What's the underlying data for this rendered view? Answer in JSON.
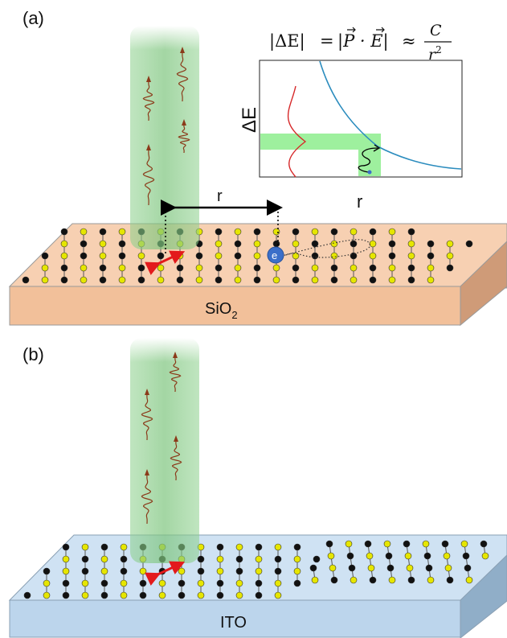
{
  "panel_a": {
    "label": "(a)",
    "formula": {
      "lhs_abs": "|ΔE|",
      "equals": "=",
      "dot_expr": "|P · E|",
      "approx": "≈",
      "numerator": "C",
      "denominator": "r",
      "exponent": "2"
    },
    "inset_plot": {
      "ylabel": "ΔE",
      "xlabel": "r",
      "curve_color": "#2b8cbe",
      "distribution_color": "#d62728",
      "band_color": "#9ef09e"
    },
    "distance_label": "r",
    "electron_label": "e",
    "substrate_label": "SiO",
    "substrate_subscript": "2",
    "substrate_color": "#f6c9a8"
  },
  "panel_b": {
    "label": "(b)",
    "substrate_label": "ITO",
    "substrate_color": "#c5dcf0"
  },
  "colors": {
    "beam": "#8cd08c",
    "atom_black": "#111111",
    "atom_yellow": "#e6e600",
    "dipole_arrow": "#e31a1c",
    "wave": "#8b3a1a"
  }
}
